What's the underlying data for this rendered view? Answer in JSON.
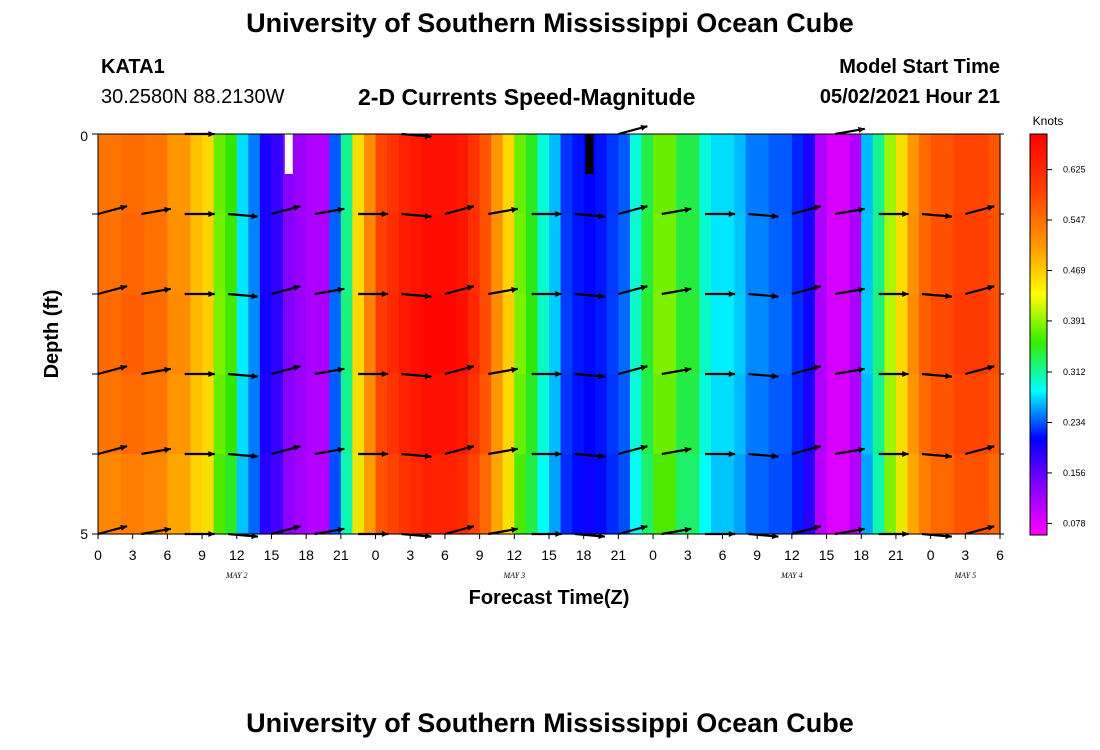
{
  "header": {
    "title": "University of Southern Mississippi Ocean Cube",
    "station_id": "KATA1",
    "station_coords": "30.2580N  88.2130W",
    "plot_title": "2-D Currents Speed-Magnitude",
    "model_start_label": "Model Start Time",
    "model_start_time": "05/02/2021 Hour 21"
  },
  "footer": {
    "title": "University of Southern Mississippi Ocean Cube"
  },
  "chart_data": {
    "type": "heatmap",
    "xlabel": "Forecast Time(Z)",
    "ylabel": "Depth (ft)",
    "x_range_hours": [
      0,
      78
    ],
    "x_tick_labels": [
      "0",
      "3",
      "6",
      "9",
      "12",
      "15",
      "18",
      "21",
      "0",
      "3",
      "6",
      "9",
      "12",
      "15",
      "18",
      "21",
      "0",
      "3",
      "6",
      "9",
      "12",
      "15",
      "18",
      "21",
      "0",
      "3",
      "6"
    ],
    "date_labels": [
      {
        "label": "MAY 2",
        "hour": 12
      },
      {
        "label": "MAY 3",
        "hour": 36
      },
      {
        "label": "MAY 4",
        "hour": 60
      },
      {
        "label": "MAY 5",
        "hour": 75
      }
    ],
    "y_ticks": [
      "0",
      "5"
    ],
    "y_range": [
      0,
      5
    ],
    "colorbar": {
      "title": "Knots",
      "tick_labels": [
        "0.625",
        "0.547",
        "0.469",
        "0.391",
        "0.312",
        "0.234",
        "0.156",
        "0.078"
      ],
      "tick_values": [
        0.625,
        0.547,
        0.469,
        0.391,
        0.312,
        0.234,
        0.156,
        0.078
      ],
      "range": [
        0.06,
        0.68
      ]
    },
    "speed_by_hour": [
      0.55,
      0.55,
      0.56,
      0.56,
      0.55,
      0.55,
      0.52,
      0.52,
      0.48,
      0.46,
      0.36,
      0.34,
      0.26,
      0.23,
      0.16,
      0.15,
      0.12,
      0.11,
      0.1,
      0.1,
      0.22,
      0.3,
      0.45,
      0.53,
      0.6,
      0.62,
      0.64,
      0.65,
      0.66,
      0.66,
      0.66,
      0.65,
      0.62,
      0.58,
      0.52,
      0.46,
      0.36,
      0.33,
      0.28,
      0.25,
      0.2,
      0.18,
      0.17,
      0.18,
      0.2,
      0.22,
      0.28,
      0.32,
      0.36,
      0.36,
      0.32,
      0.32,
      0.28,
      0.26,
      0.26,
      0.25,
      0.23,
      0.23,
      0.22,
      0.22,
      0.19,
      0.16,
      0.1,
      0.08,
      0.08,
      0.1,
      0.25,
      0.3,
      0.38,
      0.45,
      0.52,
      0.56,
      0.58,
      0.58,
      0.6,
      0.6,
      0.6,
      0.58,
      0.55
    ],
    "arrow_direction_cycle": [
      15,
      10,
      0,
      355
    ],
    "highlight_markers": [
      {
        "hour": 16.5,
        "color": "#ffffff"
      },
      {
        "hour": 42.5,
        "color": "#000000"
      }
    ]
  }
}
